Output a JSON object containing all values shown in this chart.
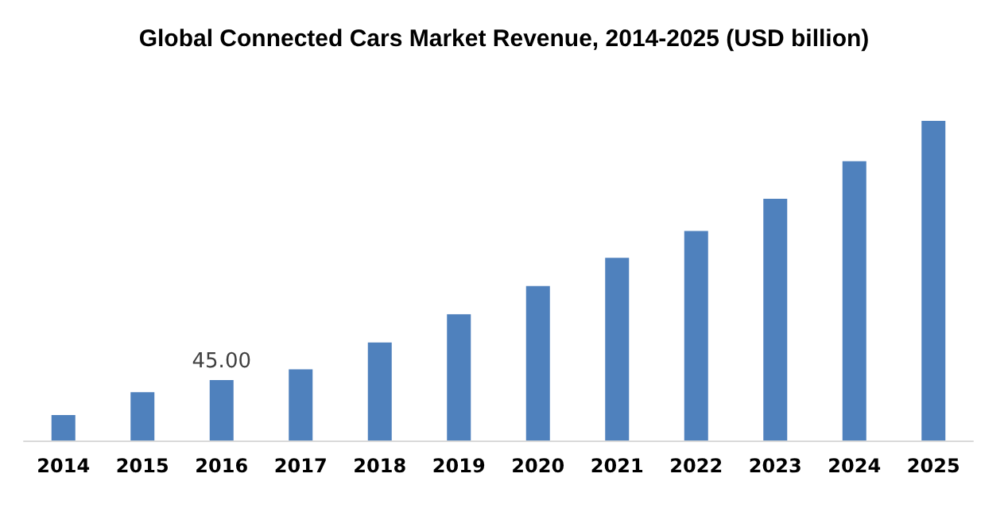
{
  "chart_data": {
    "type": "bar",
    "title": "Global Connected Cars Market Revenue, 2014-2025 (USD billion)",
    "categories": [
      "2014",
      "2015",
      "2016",
      "2017",
      "2018",
      "2019",
      "2020",
      "2021",
      "2022",
      "2023",
      "2024",
      "2025"
    ],
    "values": [
      19,
      36,
      45,
      53,
      73,
      94,
      115,
      136,
      156,
      180,
      208,
      238
    ],
    "value_labels": [
      null,
      null,
      "45.00",
      null,
      null,
      null,
      null,
      null,
      null,
      null,
      null,
      null
    ],
    "color": "#4f81bd"
  }
}
